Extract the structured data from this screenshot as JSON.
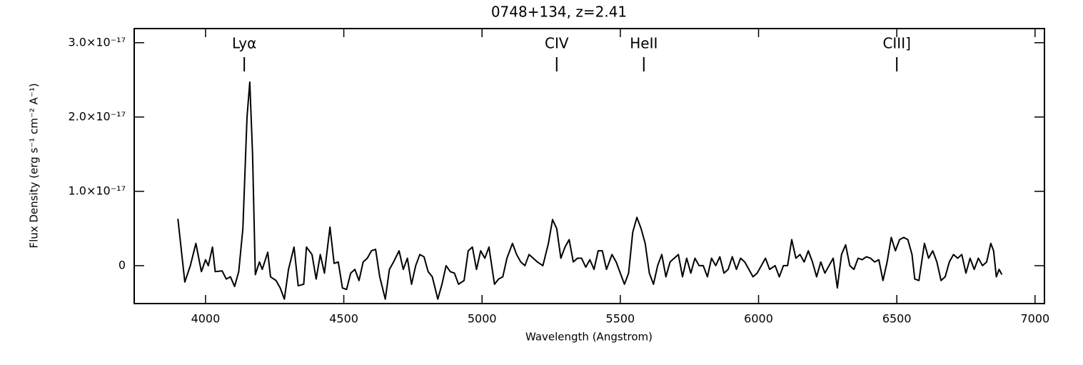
{
  "chart_data": {
    "type": "line",
    "title": "0748+134, z=2.41",
    "xlabel": "Wavelength (Angstrom)",
    "ylabel": "Flux Density (erg s⁻¹ cm⁻² A⁻¹)",
    "color": "#000000",
    "xlim": [
      3742,
      7034
    ],
    "xticks": [
      4000,
      4500,
      5000,
      5500,
      6000,
      6500,
      7000
    ],
    "ylim": [
      -5.1e-18,
      3.19e-17
    ],
    "yticks": [
      0,
      {
        "value": 1e-17,
        "label": "1.0×10⁻¹⁷"
      },
      {
        "value": 2e-17,
        "label": "2.0×10⁻¹⁷"
      },
      {
        "value": 3e-17,
        "label": "3.0×10⁻¹⁷"
      }
    ],
    "annotations": [
      {
        "label": "Lyα",
        "x": 4140
      },
      {
        "label": "CIV",
        "x": 5270
      },
      {
        "label": "HeII",
        "x": 5585
      },
      {
        "label": "CIII]",
        "x": 6500
      }
    ],
    "x": [
      3900,
      3925,
      3945,
      3965,
      3985,
      4000,
      4010,
      4025,
      4035,
      4060,
      4075,
      4090,
      4105,
      4120,
      4135,
      4150,
      4160,
      4170,
      4180,
      4195,
      4205,
      4225,
      4235,
      4255,
      4270,
      4285,
      4300,
      4320,
      4335,
      4355,
      4365,
      4385,
      4400,
      4415,
      4430,
      4450,
      4465,
      4480,
      4495,
      4510,
      4525,
      4540,
      4555,
      4570,
      4585,
      4600,
      4615,
      4630,
      4650,
      4665,
      4680,
      4700,
      4715,
      4730,
      4745,
      4760,
      4775,
      4790,
      4805,
      4820,
      4840,
      4855,
      4870,
      4885,
      4900,
      4915,
      4935,
      4950,
      4965,
      4980,
      4995,
      5010,
      5025,
      5045,
      5060,
      5075,
      5090,
      5110,
      5125,
      5140,
      5155,
      5170,
      5185,
      5200,
      5220,
      5240,
      5255,
      5270,
      5285,
      5300,
      5315,
      5330,
      5345,
      5360,
      5375,
      5390,
      5405,
      5420,
      5435,
      5450,
      5470,
      5485,
      5500,
      5515,
      5530,
      5545,
      5560,
      5575,
      5590,
      5605,
      5620,
      5635,
      5650,
      5665,
      5680,
      5695,
      5710,
      5725,
      5740,
      5755,
      5770,
      5785,
      5800,
      5815,
      5830,
      5845,
      5860,
      5875,
      5890,
      5905,
      5920,
      5935,
      5950,
      5965,
      5980,
      5995,
      6010,
      6025,
      6040,
      6060,
      6075,
      6090,
      6105,
      6120,
      6135,
      6150,
      6165,
      6180,
      6195,
      6210,
      6225,
      6240,
      6255,
      6270,
      6285,
      6300,
      6315,
      6330,
      6345,
      6360,
      6375,
      6390,
      6405,
      6420,
      6435,
      6450,
      6465,
      6480,
      6495,
      6510,
      6525,
      6540,
      6555,
      6565,
      6580,
      6600,
      6615,
      6630,
      6645,
      6660,
      6675,
      6690,
      6705,
      6720,
      6735,
      6750,
      6765,
      6780,
      6795,
      6810,
      6825,
      6840,
      6850,
      6860,
      6870,
      6880
    ],
    "values": [
      6.3e-18,
      -2.2e-18,
      0.0,
      3e-18,
      -8e-19,
      8e-19,
      0.0,
      2.5e-18,
      -8e-19,
      -7e-19,
      -1.8e-18,
      -1.5e-18,
      -2.8e-18,
      -8e-19,
      5e-18,
      2e-17,
      2.47e-17,
      1.5e-17,
      -1.2e-18,
      5e-19,
      -5e-19,
      1.8e-18,
      -1.5e-18,
      -2e-18,
      -3e-18,
      -4.5e-18,
      -5e-19,
      2.5e-18,
      -2.7e-18,
      -2.5e-18,
      2.5e-18,
      1.5e-18,
      -1.8e-18,
      1.5e-18,
      -1e-18,
      5.2e-18,
      3e-19,
      5e-19,
      -3e-18,
      -3.2e-18,
      -1e-18,
      -5e-19,
      -2e-18,
      5e-19,
      1e-18,
      2e-18,
      2.2e-18,
      -1.5e-18,
      -4.5e-18,
      -5e-19,
      5e-19,
      2e-18,
      -5e-19,
      1e-18,
      -2.5e-18,
      0.0,
      1.5e-18,
      1.2e-18,
      -8e-19,
      -1.5e-18,
      -4.5e-18,
      -2.5e-18,
      0.0,
      -8e-19,
      -1e-18,
      -2.5e-18,
      -2e-18,
      2e-18,
      2.5e-18,
      -5e-19,
      2e-18,
      1e-18,
      2.5e-18,
      -2.5e-18,
      -1.8e-18,
      -1.5e-18,
      1e-18,
      3e-18,
      1.5e-18,
      5e-19,
      0.0,
      1.5e-18,
      1e-18,
      5e-19,
      0.0,
      3e-18,
      6.2e-18,
      5e-18,
      1e-18,
      2.5e-18,
      3.5e-18,
      5e-19,
      1e-18,
      1e-18,
      -2e-19,
      8e-19,
      -5e-19,
      2e-18,
      2e-18,
      -5e-19,
      1.5e-18,
      5e-19,
      -1e-18,
      -2.5e-18,
      -1e-18,
      4.5e-18,
      6.5e-18,
      5e-18,
      3e-18,
      -1e-18,
      -2.5e-18,
      0.0,
      1.5e-18,
      -1.5e-18,
      5e-19,
      1e-18,
      1.5e-18,
      -1.5e-18,
      1e-18,
      -1e-18,
      1e-18,
      0.0,
      0.0,
      -1.5e-18,
      1e-18,
      0.0,
      1.2e-18,
      -1e-18,
      -5e-19,
      1.2e-18,
      -5e-19,
      1e-18,
      5e-19,
      -5e-19,
      -1.5e-18,
      -1e-18,
      0.0,
      1e-18,
      -5e-19,
      0.0,
      -1.5e-18,
      0.0,
      0.0,
      3.5e-18,
      1e-18,
      1.5e-18,
      5e-19,
      2e-18,
      5e-19,
      -1.5e-18,
      5e-19,
      -1e-18,
      0.0,
      1e-18,
      -3e-18,
      1.5e-18,
      2.8e-18,
      0.0,
      -5e-19,
      1e-18,
      8e-19,
      1.2e-18,
      1e-18,
      5e-19,
      8e-19,
      -2e-18,
      5e-19,
      3.8e-18,
      2e-18,
      3.5e-18,
      3.8e-18,
      3.5e-18,
      1.5e-18,
      -1.8e-18,
      -2e-18,
      3e-18,
      1e-18,
      2e-18,
      5e-19,
      -2e-18,
      -1.5e-18,
      5e-19,
      1.5e-18,
      1e-18,
      1.5e-18,
      -1e-18,
      1e-18,
      -5e-19,
      1e-18,
      0.0,
      5e-19,
      3e-18,
      2e-18,
      -1.5e-18,
      -5e-19,
      -1.2e-18
    ]
  }
}
